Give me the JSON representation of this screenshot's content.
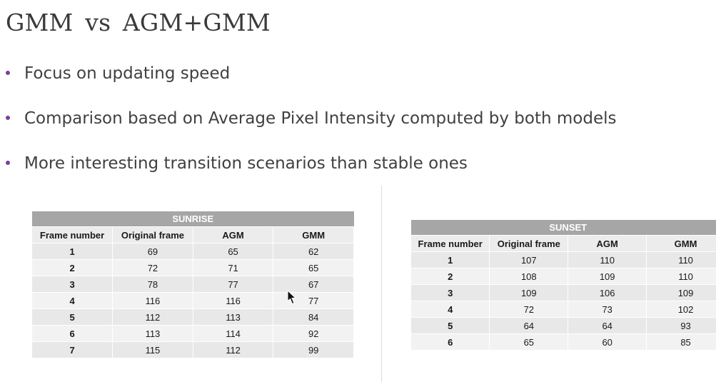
{
  "slide": {
    "title": "GMM  vs  AGM+GMM",
    "bullets": [
      "Focus on updating speed",
      "Comparison based on Average Pixel Intensity computed by both models",
      "More interesting transition scenarios than stable ones"
    ],
    "bullet_color": "#7b3fa0"
  },
  "sunrise": {
    "caption": "SUNRISE",
    "headers": [
      "Frame number",
      "Original frame",
      "AGM",
      "GMM"
    ],
    "rows": [
      [
        "1",
        "69",
        "65",
        "62"
      ],
      [
        "2",
        "72",
        "71",
        "65"
      ],
      [
        "3",
        "78",
        "77",
        "67"
      ],
      [
        "4",
        "116",
        "116",
        "77"
      ],
      [
        "5",
        "112",
        "113",
        "84"
      ],
      [
        "6",
        "113",
        "114",
        "92"
      ],
      [
        "7",
        "115",
        "112",
        "99"
      ]
    ]
  },
  "sunset": {
    "caption": "SUNSET",
    "headers": [
      "Frame number",
      "Original frame",
      "AGM",
      "GMM"
    ],
    "rows": [
      [
        "1",
        "107",
        "110",
        "110"
      ],
      [
        "2",
        "108",
        "109",
        "110"
      ],
      [
        "3",
        "109",
        "106",
        "109"
      ],
      [
        "4",
        "72",
        "73",
        "102"
      ],
      [
        "5",
        "64",
        "64",
        "93"
      ],
      [
        "6",
        "65",
        "60",
        "85"
      ]
    ]
  }
}
